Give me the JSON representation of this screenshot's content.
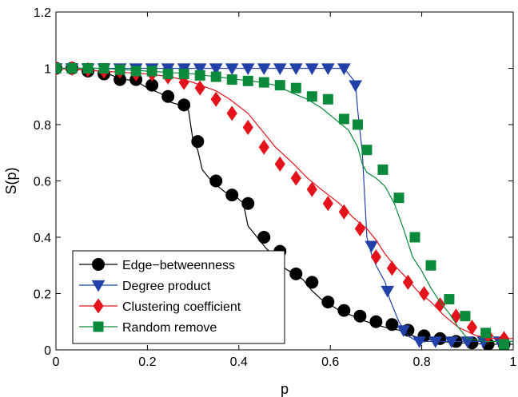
{
  "chart_data": {
    "type": "line",
    "title": "",
    "xlabel": "p",
    "ylabel": "S(p)",
    "xlim": [
      0,
      1
    ],
    "ylim": [
      0,
      1.2
    ],
    "xticks": [
      0,
      0.2,
      0.4,
      0.6,
      0.8,
      1
    ],
    "xtick_labels": [
      "0",
      "0.2",
      "0.4",
      "0.6",
      "0.8",
      "1"
    ],
    "yticks": [
      0,
      0.2,
      0.4,
      0.6,
      0.8,
      1,
      1.2
    ],
    "ytick_labels": [
      "0",
      "0.2",
      "0.4",
      "0.6",
      "0.8",
      "1",
      "1.2"
    ],
    "grid": false,
    "legend_position": "bottom-left",
    "series": [
      {
        "name": "Edge−betweenness",
        "color": "#000000",
        "marker": "circle",
        "line": [
          [
            0,
            1
          ],
          [
            0.1,
            0.99
          ],
          [
            0.13,
            0.97
          ],
          [
            0.18,
            0.95
          ],
          [
            0.2,
            0.93
          ],
          [
            0.23,
            0.91
          ],
          [
            0.25,
            0.88
          ],
          [
            0.27,
            0.87
          ],
          [
            0.29,
            0.85
          ],
          [
            0.3,
            0.74
          ],
          [
            0.31,
            0.71
          ],
          [
            0.32,
            0.64
          ],
          [
            0.34,
            0.6
          ],
          [
            0.37,
            0.56
          ],
          [
            0.39,
            0.55
          ],
          [
            0.41,
            0.52
          ],
          [
            0.42,
            0.44
          ],
          [
            0.44,
            0.4
          ],
          [
            0.46,
            0.36
          ],
          [
            0.48,
            0.33
          ],
          [
            0.5,
            0.29
          ],
          [
            0.52,
            0.27
          ],
          [
            0.54,
            0.25
          ],
          [
            0.56,
            0.21
          ],
          [
            0.58,
            0.18
          ],
          [
            0.6,
            0.16
          ],
          [
            0.62,
            0.14
          ],
          [
            0.65,
            0.12
          ],
          [
            0.68,
            0.1
          ],
          [
            0.72,
            0.08
          ],
          [
            0.75,
            0.07
          ],
          [
            0.78,
            0.05
          ],
          [
            0.8,
            0.04
          ],
          [
            0.84,
            0.03
          ],
          [
            0.88,
            0.025
          ],
          [
            0.94,
            0.02
          ],
          [
            1.0,
            0.02
          ]
        ],
        "x": [
          0,
          0.035,
          0.07,
          0.105,
          0.14,
          0.175,
          0.21,
          0.245,
          0.28,
          0.31,
          0.35,
          0.385,
          0.42,
          0.455,
          0.49,
          0.525,
          0.56,
          0.595,
          0.63,
          0.665,
          0.7,
          0.735,
          0.77,
          0.805,
          0.84,
          0.875,
          0.91,
          0.945,
          0.98
        ],
        "y": [
          1.0,
          1.0,
          0.99,
          0.98,
          0.96,
          0.96,
          0.94,
          0.9,
          0.87,
          0.74,
          0.6,
          0.55,
          0.52,
          0.4,
          0.35,
          0.27,
          0.24,
          0.17,
          0.14,
          0.12,
          0.1,
          0.09,
          0.07,
          0.05,
          0.04,
          0.03,
          0.025,
          0.02,
          0.02
        ]
      },
      {
        "name": "Degree product",
        "color": "#2140a8",
        "marker": "triangle-down",
        "line": [
          [
            0,
            1
          ],
          [
            0.63,
            1
          ],
          [
            0.655,
            0.95
          ],
          [
            0.66,
            0.85
          ],
          [
            0.67,
            0.7
          ],
          [
            0.675,
            0.55
          ],
          [
            0.68,
            0.4
          ],
          [
            0.69,
            0.34
          ],
          [
            0.7,
            0.3
          ],
          [
            0.72,
            0.24
          ],
          [
            0.73,
            0.18
          ],
          [
            0.75,
            0.1
          ],
          [
            0.77,
            0.05
          ],
          [
            0.79,
            0.03
          ],
          [
            1.0,
            0.03
          ]
        ],
        "x": [
          0,
          0.035,
          0.07,
          0.105,
          0.14,
          0.175,
          0.21,
          0.245,
          0.28,
          0.315,
          0.35,
          0.385,
          0.42,
          0.455,
          0.49,
          0.525,
          0.56,
          0.595,
          0.63,
          0.655,
          0.69,
          0.725,
          0.76,
          0.795,
          0.83,
          0.865,
          0.9,
          0.935,
          0.97
        ],
        "y": [
          1.0,
          1.0,
          1.0,
          1.0,
          1.0,
          1.0,
          1.0,
          1.0,
          1.0,
          1.0,
          1.0,
          1.0,
          1.0,
          1.0,
          1.0,
          1.0,
          1.0,
          1.0,
          1.0,
          0.94,
          0.37,
          0.21,
          0.07,
          0.03,
          0.03,
          0.03,
          0.03,
          0.03,
          0.03
        ]
      },
      {
        "name": "Clustering coefficient",
        "color": "#e3121b",
        "marker": "diamond",
        "line": [
          [
            0,
            1
          ],
          [
            0.1,
            0.99
          ],
          [
            0.2,
            0.98
          ],
          [
            0.25,
            0.97
          ],
          [
            0.3,
            0.95
          ],
          [
            0.35,
            0.92
          ],
          [
            0.38,
            0.89
          ],
          [
            0.42,
            0.84
          ],
          [
            0.45,
            0.78
          ],
          [
            0.48,
            0.72
          ],
          [
            0.52,
            0.66
          ],
          [
            0.55,
            0.61
          ],
          [
            0.58,
            0.57
          ],
          [
            0.62,
            0.52
          ],
          [
            0.65,
            0.47
          ],
          [
            0.68,
            0.43
          ],
          [
            0.7,
            0.39
          ],
          [
            0.72,
            0.34
          ],
          [
            0.74,
            0.3
          ],
          [
            0.77,
            0.25
          ],
          [
            0.79,
            0.21
          ],
          [
            0.82,
            0.17
          ],
          [
            0.85,
            0.12
          ],
          [
            0.88,
            0.08
          ],
          [
            0.92,
            0.05
          ],
          [
            0.96,
            0.04
          ],
          [
            1.0,
            0.04
          ]
        ],
        "x": [
          0,
          0.035,
          0.07,
          0.105,
          0.14,
          0.175,
          0.21,
          0.245,
          0.28,
          0.315,
          0.35,
          0.385,
          0.42,
          0.455,
          0.49,
          0.525,
          0.56,
          0.595,
          0.63,
          0.665,
          0.7,
          0.735,
          0.77,
          0.805,
          0.84,
          0.875,
          0.91,
          0.945,
          0.98
        ],
        "y": [
          1.0,
          1.0,
          0.995,
          0.99,
          0.99,
          0.98,
          0.98,
          0.97,
          0.95,
          0.93,
          0.89,
          0.84,
          0.79,
          0.72,
          0.66,
          0.61,
          0.57,
          0.52,
          0.49,
          0.43,
          0.33,
          0.29,
          0.24,
          0.2,
          0.16,
          0.12,
          0.08,
          0.05,
          0.04
        ]
      },
      {
        "name": "Random remove",
        "color": "#0a8a3a",
        "marker": "square",
        "line": [
          [
            0,
            1
          ],
          [
            0.1,
            1.0
          ],
          [
            0.2,
            0.99
          ],
          [
            0.25,
            0.985
          ],
          [
            0.3,
            0.98
          ],
          [
            0.35,
            0.97
          ],
          [
            0.4,
            0.96
          ],
          [
            0.45,
            0.95
          ],
          [
            0.48,
            0.94
          ],
          [
            0.52,
            0.91
          ],
          [
            0.55,
            0.89
          ],
          [
            0.58,
            0.86
          ],
          [
            0.61,
            0.82
          ],
          [
            0.64,
            0.78
          ],
          [
            0.66,
            0.72
          ],
          [
            0.67,
            0.66
          ],
          [
            0.68,
            0.63
          ],
          [
            0.7,
            0.61
          ],
          [
            0.72,
            0.58
          ],
          [
            0.74,
            0.52
          ],
          [
            0.76,
            0.43
          ],
          [
            0.78,
            0.33
          ],
          [
            0.8,
            0.28
          ],
          [
            0.82,
            0.22
          ],
          [
            0.84,
            0.17
          ],
          [
            0.86,
            0.13
          ],
          [
            0.88,
            0.08
          ],
          [
            0.9,
            0.04
          ],
          [
            0.94,
            0.03
          ],
          [
            1.0,
            0.03
          ]
        ],
        "x": [
          0,
          0.035,
          0.07,
          0.105,
          0.14,
          0.175,
          0.21,
          0.245,
          0.28,
          0.315,
          0.35,
          0.385,
          0.42,
          0.455,
          0.49,
          0.525,
          0.56,
          0.595,
          0.63,
          0.66,
          0.68,
          0.715,
          0.75,
          0.785,
          0.82,
          0.86,
          0.895,
          0.94,
          0.98
        ],
        "y": [
          1.0,
          1.0,
          1.0,
          1.0,
          0.995,
          0.99,
          0.99,
          0.98,
          0.98,
          0.975,
          0.97,
          0.96,
          0.955,
          0.95,
          0.94,
          0.93,
          0.9,
          0.89,
          0.82,
          0.8,
          0.71,
          0.64,
          0.54,
          0.4,
          0.3,
          0.18,
          0.12,
          0.06,
          0.02
        ]
      }
    ]
  }
}
